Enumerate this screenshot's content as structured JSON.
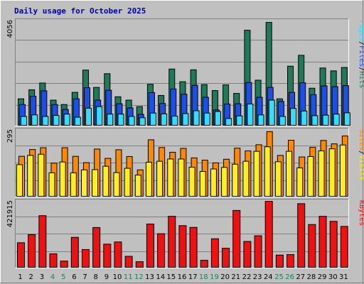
{
  "chart_data": {
    "title": "Daily usage for October 2025",
    "type": "bar",
    "categories": [
      "1",
      "2",
      "3",
      "4",
      "5",
      "6",
      "7",
      "8",
      "9",
      "10",
      "11",
      "12",
      "13",
      "14",
      "15",
      "16",
      "17",
      "18",
      "19",
      "20",
      "21",
      "22",
      "23",
      "24",
      "25",
      "26",
      "27",
      "28",
      "29",
      "30",
      "31"
    ],
    "weekend_days": [
      4,
      5,
      11,
      12,
      18,
      19,
      25,
      26
    ],
    "colors": {
      "hits": "#1f7a5a",
      "files": "#1d4fe6",
      "pages": "#33ddff",
      "sites": "#ff8800",
      "visits": "#ffee22",
      "kbytes": "#ee1111",
      "weekday_tick": "#000000",
      "weekend_tick": "#208060"
    },
    "panels": [
      {
        "name": "pages-files-hits",
        "max_label": "4056",
        "ylim": [
          0,
          4056
        ],
        "legend": [
          {
            "text": "Pages",
            "color": "#33ddff"
          },
          {
            "text": "/",
            "color": "#000000"
          },
          {
            "text": "Files",
            "color": "#1d4fe6"
          },
          {
            "text": "/",
            "color": "#000000"
          },
          {
            "text": "Hits",
            "color": "#1f7a5a"
          }
        ],
        "series": [
          {
            "name": "Hits",
            "values": [
              1050,
              1400,
              1660,
              1000,
              830,
              1300,
              2160,
              1490,
              2020,
              1130,
              1000,
              750,
              1610,
              1180,
              2200,
              1710,
              2170,
              1600,
              1370,
              1590,
              1260,
              3700,
              1770,
              4000,
              1050,
              2310,
              2730,
              1460,
              2240,
              2130,
              2260
            ]
          },
          {
            "name": "Files",
            "values": [
              830,
              1150,
              1360,
              830,
              640,
              1050,
              1480,
              1000,
              1380,
              860,
              700,
              450,
              1290,
              870,
              1430,
              1230,
              1570,
              1110,
              620,
              850,
              860,
              1680,
              1110,
              1490,
              950,
              1300,
              1670,
              1210,
              1550,
              1520,
              1560
            ]
          },
          {
            "name": "Pages",
            "values": [
              370,
              430,
              370,
              410,
              460,
              340,
              690,
              750,
              460,
              460,
              370,
              320,
              500,
              470,
              380,
              480,
              590,
              500,
              560,
              290,
              390,
              850,
              430,
              1000,
              370,
              680,
              580,
              400,
              420,
              460,
              510
            ]
          }
        ]
      },
      {
        "name": "sites-visits",
        "max_label": "295",
        "ylim": [
          0,
          295
        ],
        "legend": [
          {
            "text": "Sites",
            "color": "#ff8800"
          },
          {
            "text": "/",
            "color": "#000000"
          },
          {
            "text": "Visits",
            "color": "#ffee22"
          }
        ],
        "series": [
          {
            "name": "Sites",
            "values": [
              180,
              210,
              218,
              150,
              218,
              180,
              152,
              212,
              171,
              209,
              179,
              120,
              253,
              219,
              198,
              215,
              173,
              163,
              151,
              167,
              216,
              204,
              231,
              289,
              184,
              251,
              177,
              220,
              250,
              235,
              270
            ]
          },
          {
            "name": "Visits",
            "values": [
              143,
              184,
              189,
              107,
              155,
              107,
              120,
              121,
              136,
              108,
              127,
              97,
              154,
              158,
              168,
              168,
              132,
              113,
              124,
              131,
              145,
              158,
              202,
              222,
              156,
              202,
              129,
              179,
              204,
              213,
              230
            ]
          }
        ]
      },
      {
        "name": "kbytes",
        "max_label": "421915",
        "ylim": [
          0,
          421915
        ],
        "legend": [
          {
            "text": "KBytes",
            "color": "#ee1111"
          }
        ],
        "series": [
          {
            "name": "KBytes",
            "values": [
              160000,
              211000,
              331000,
              90000,
              44000,
              194000,
              117000,
              256000,
              151000,
              165000,
              74000,
              40000,
              278000,
              217000,
              327000,
              268000,
              257000,
              49000,
              185000,
              125000,
              364000,
              168000,
              204000,
              421915,
              82000,
              85000,
              407000,
              275000,
              327000,
              295000,
              263000
            ]
          }
        ]
      }
    ]
  }
}
